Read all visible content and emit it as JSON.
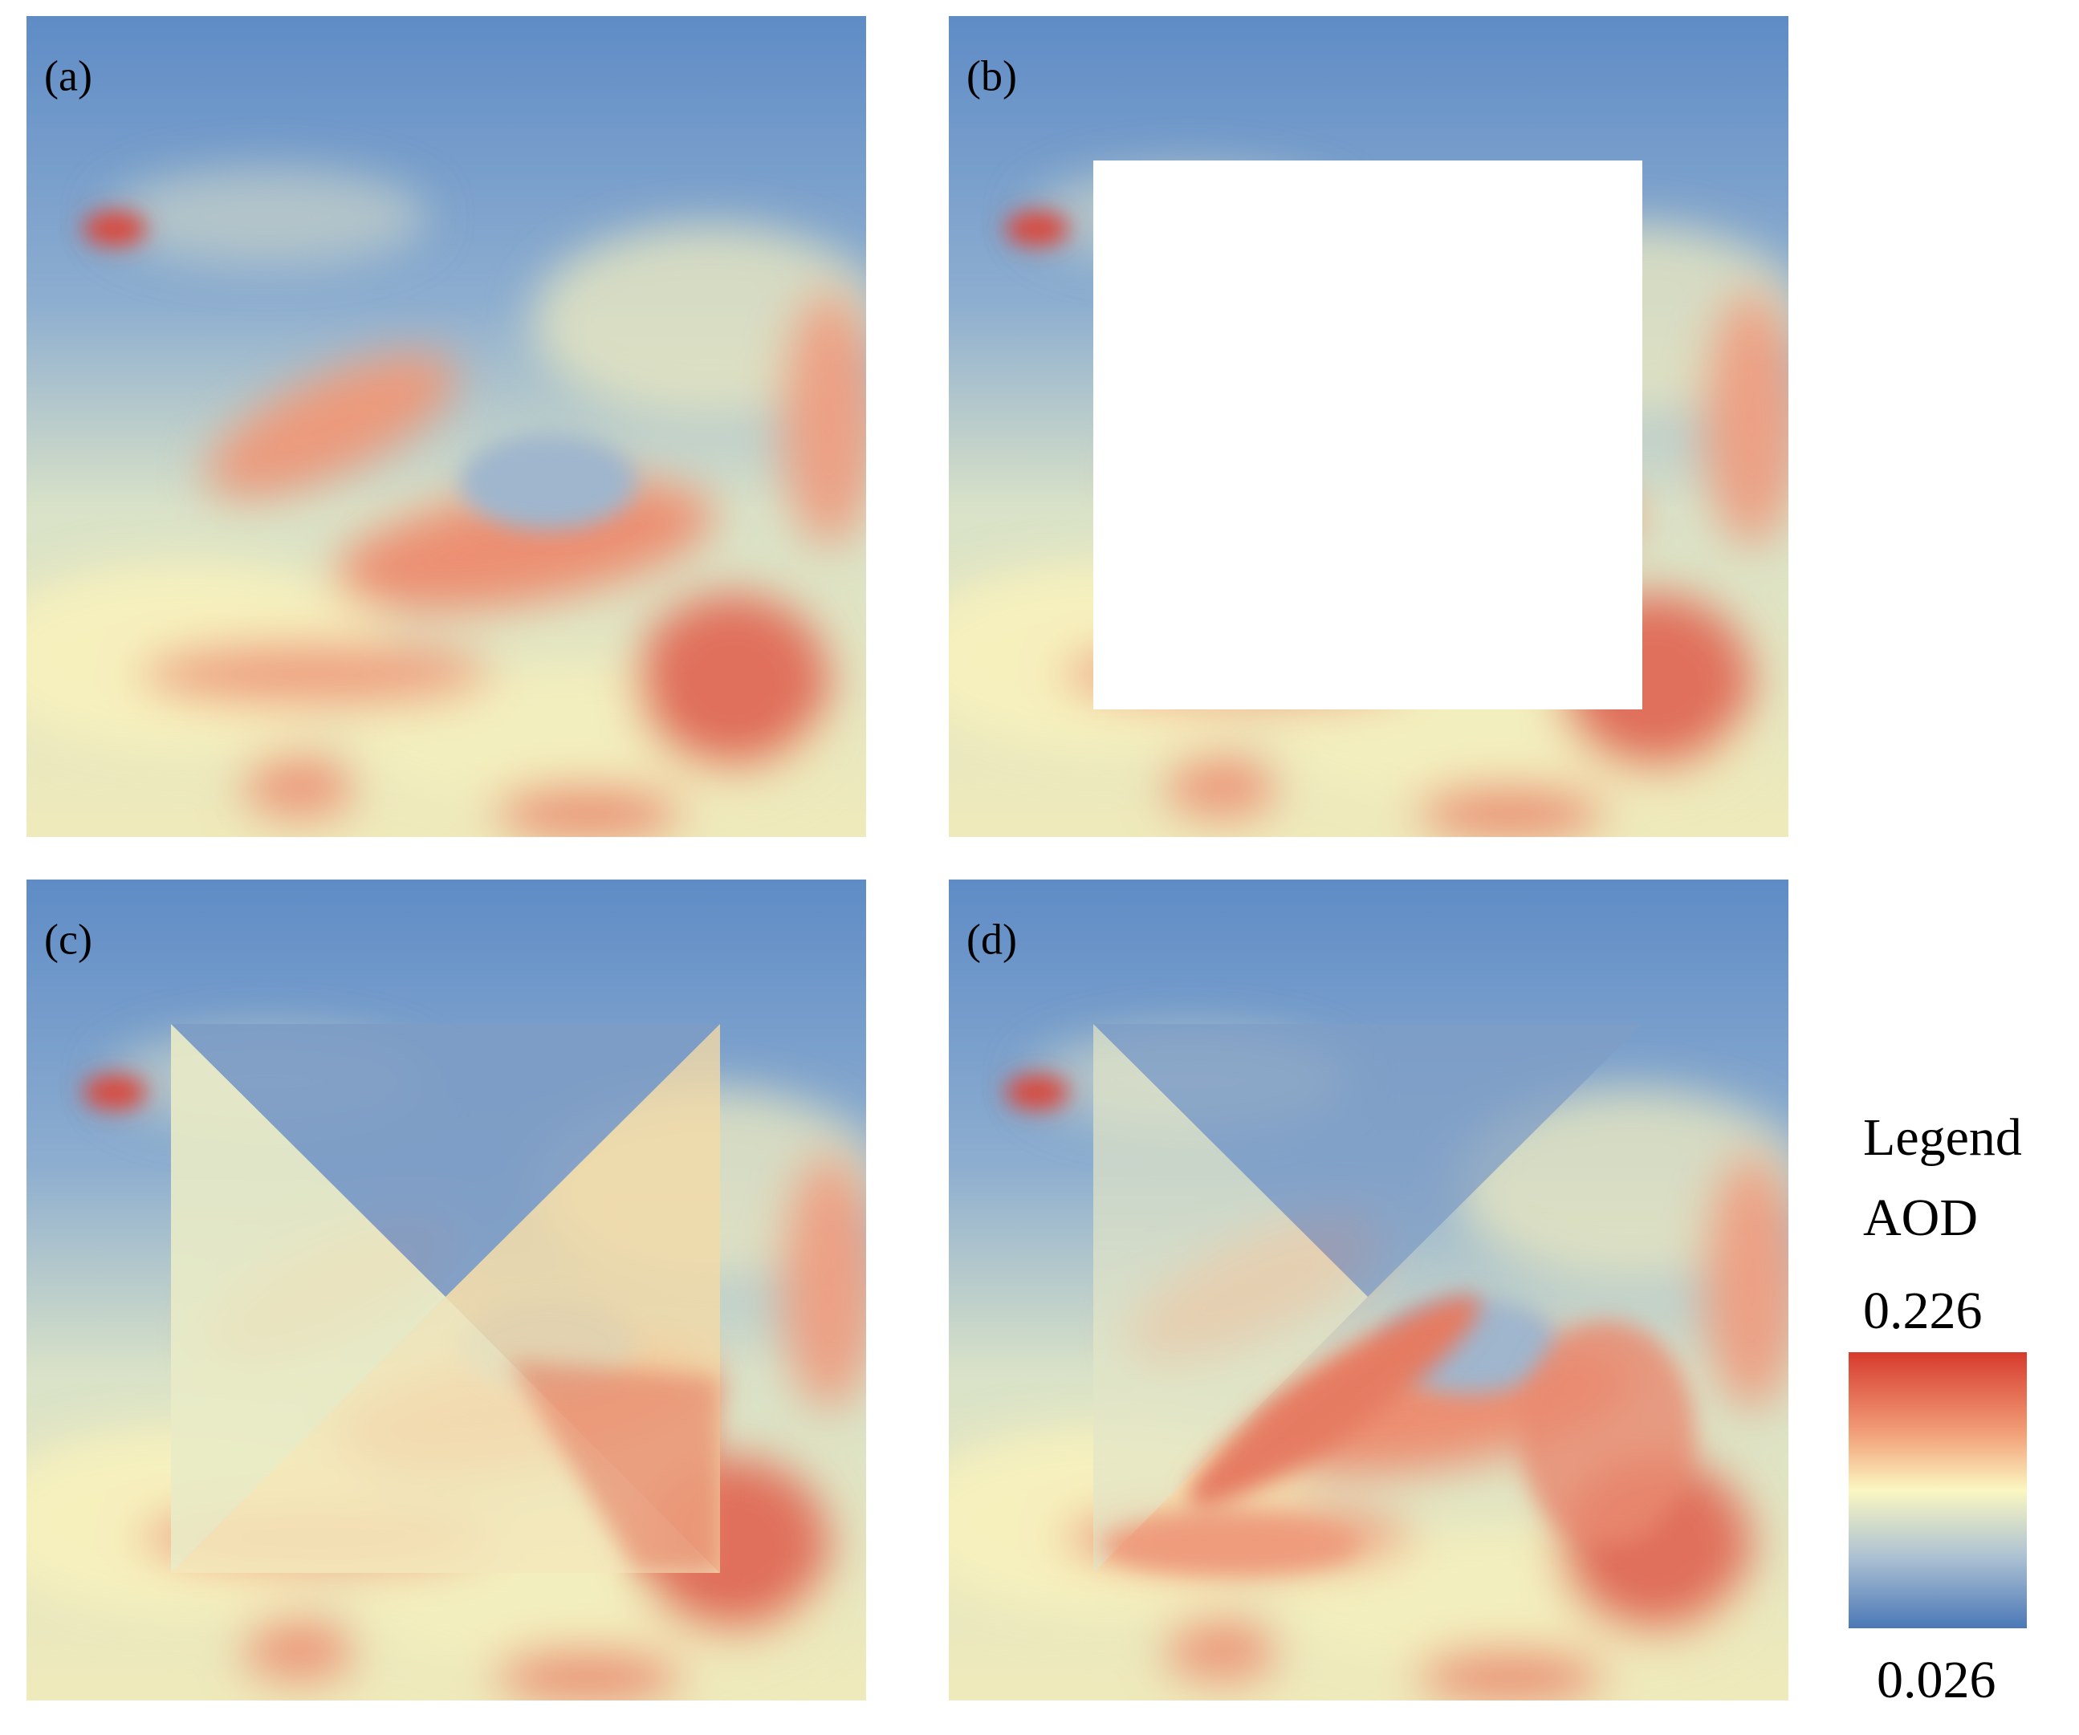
{
  "panels": [
    {
      "label": "(a)"
    },
    {
      "label": "(b)"
    },
    {
      "label": "(c)"
    },
    {
      "label": "(d)"
    }
  ],
  "legend": {
    "title": "Legend",
    "variable": "AOD",
    "max": 0.226,
    "min": 0.026
  }
}
